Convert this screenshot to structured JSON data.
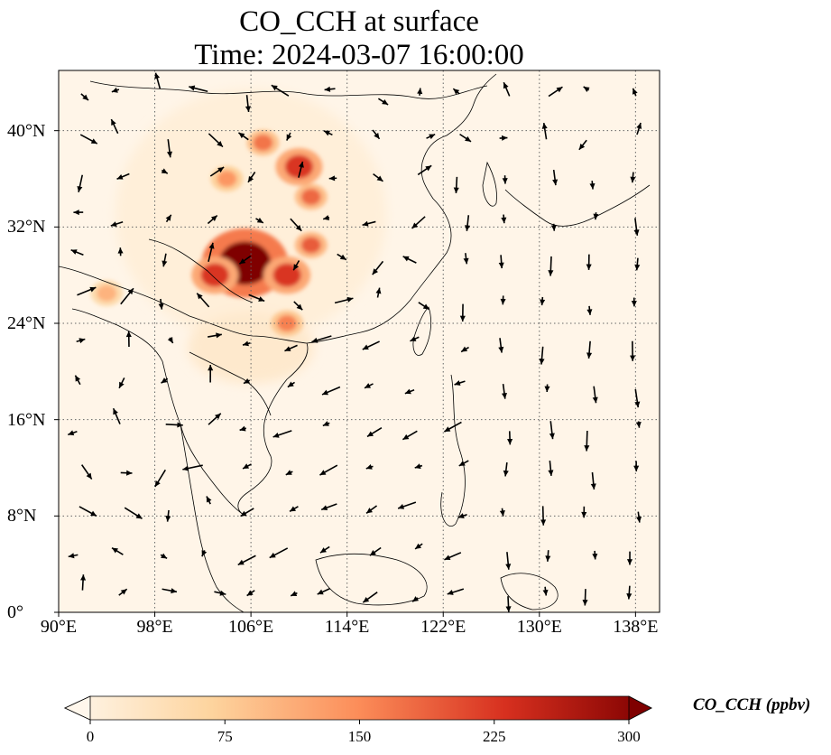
{
  "title": {
    "line1": "CO_CCH at surface",
    "line2": "Time: 2024-03-07 16:00:00"
  },
  "map": {
    "projection": "PlateCarree",
    "lon_range": [
      90,
      140
    ],
    "lat_range": [
      0,
      45
    ],
    "x_ticks": [
      {
        "value": 90,
        "label": "90°E"
      },
      {
        "value": 98,
        "label": "98°E"
      },
      {
        "value": 106,
        "label": "106°E"
      },
      {
        "value": 114,
        "label": "114°E"
      },
      {
        "value": 122,
        "label": "122°E"
      },
      {
        "value": 130,
        "label": "130°E"
      },
      {
        "value": 138,
        "label": "138°E"
      }
    ],
    "y_ticks": [
      {
        "value": 40,
        "label": "40°N"
      },
      {
        "value": 32,
        "label": "32°N"
      },
      {
        "value": 24,
        "label": "24°N"
      },
      {
        "value": 16,
        "label": "16°N"
      },
      {
        "value": 8,
        "label": "8°N"
      },
      {
        "value": 0,
        "label": "0°"
      }
    ],
    "grid": "dotted",
    "field": "CO_CCH",
    "hotspots": [
      {
        "lon": 105.5,
        "lat": 29,
        "value": 300
      },
      {
        "lon": 109,
        "lat": 28,
        "value": 220
      },
      {
        "lon": 103,
        "lat": 28,
        "value": 220
      },
      {
        "lon": 110,
        "lat": 37,
        "value": 220
      },
      {
        "lon": 107,
        "lat": 39,
        "value": 170
      },
      {
        "lon": 104,
        "lat": 36,
        "value": 140
      },
      {
        "lon": 111,
        "lat": 30.5,
        "value": 190
      },
      {
        "lon": 109,
        "lat": 24,
        "value": 160
      },
      {
        "lon": 94,
        "lat": 26.5,
        "value": 110
      },
      {
        "lon": 111,
        "lat": 34.5,
        "value": 180
      }
    ]
  },
  "colorbar": {
    "label": "CO_CCH (ppbv)",
    "min": 0,
    "max": 300,
    "ticks": [
      {
        "value": 0,
        "label": "0"
      },
      {
        "value": 75,
        "label": "75"
      },
      {
        "value": 150,
        "label": "150"
      },
      {
        "value": 225,
        "label": "225"
      },
      {
        "value": 300,
        "label": "300"
      }
    ],
    "colormap": "OrRd",
    "colors": [
      "#fff7ec",
      "#fdd49e",
      "#fc8d59",
      "#d7301f",
      "#7f0000"
    ],
    "extend": "both"
  }
}
